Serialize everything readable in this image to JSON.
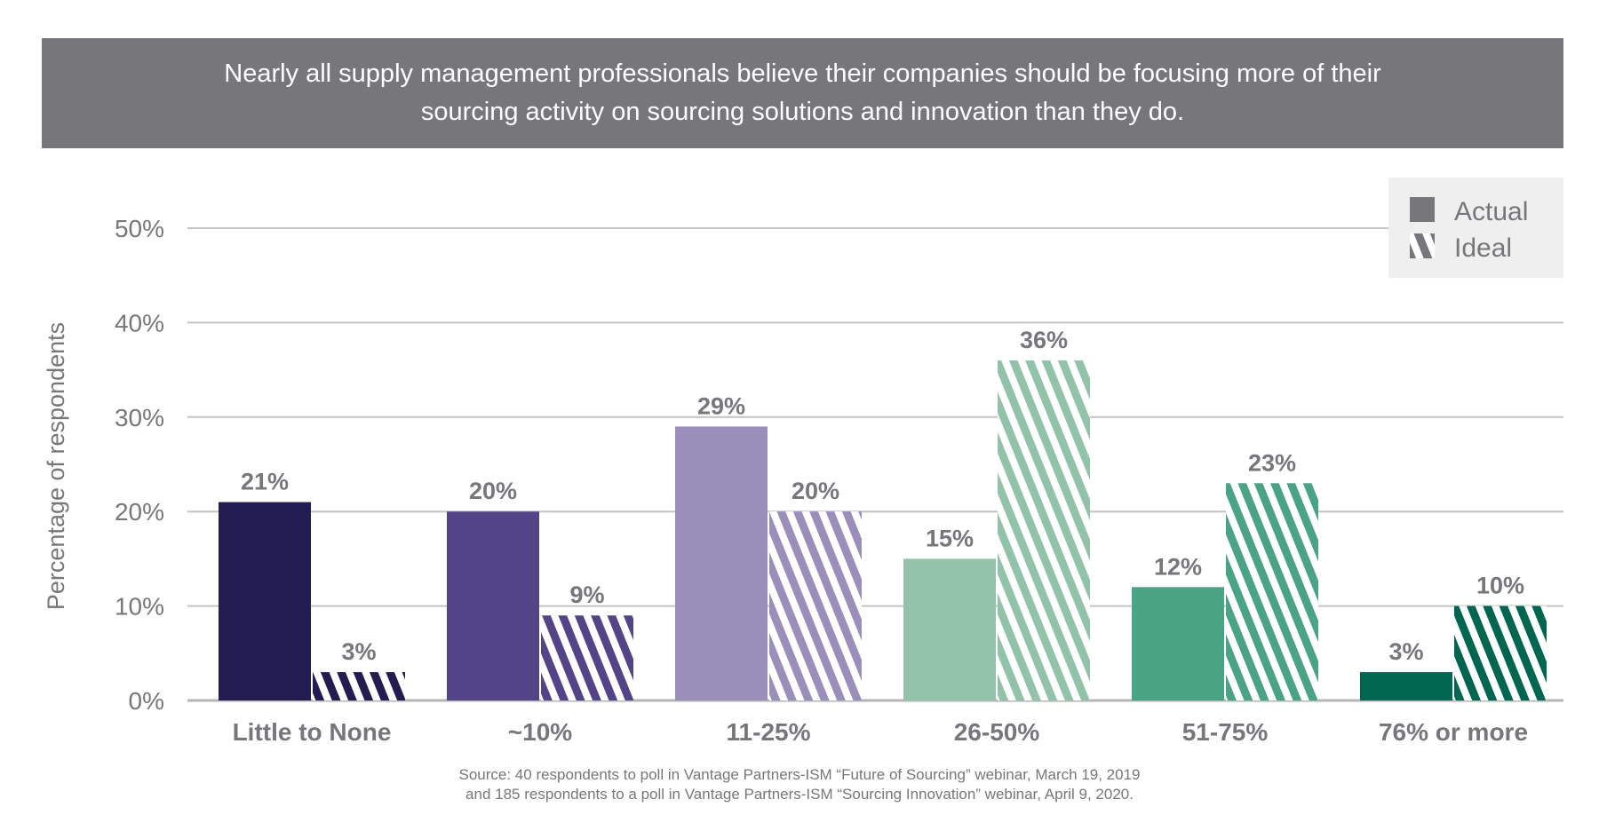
{
  "header": {
    "title": "Nearly all supply management professionals believe their companies should be focusing more of their sourcing activity on sourcing solutions and innovation than they do."
  },
  "chart_data": {
    "type": "bar",
    "title": "Nearly all supply management professionals believe their companies should be focusing more of their sourcing activity on sourcing solutions and innovation than they do.",
    "xlabel": "",
    "ylabel": "Percentage of respondents",
    "ylim": [
      0,
      50
    ],
    "yticks": [
      "0%",
      "10%",
      "20%",
      "30%",
      "40%",
      "50%"
    ],
    "ytick_values": [
      0,
      10,
      20,
      30,
      40,
      50
    ],
    "grid": true,
    "legend_placement": "top-right",
    "categories": [
      "Little to None",
      "~10%",
      "11-25%",
      "26-50%",
      "51-75%",
      "76% or more"
    ],
    "category_colors": [
      "#231c50",
      "#534487",
      "#998fba",
      "#93c2ab",
      "#4aa383",
      "#016650"
    ],
    "series": [
      {
        "name": "Actual",
        "style": "solid",
        "values": [
          21,
          20,
          29,
          15,
          12,
          3
        ],
        "labels": [
          "21%",
          "20%",
          "29%",
          "15%",
          "12%",
          "3%"
        ]
      },
      {
        "name": "Ideal",
        "style": "hatched",
        "values": [
          3,
          9,
          20,
          36,
          23,
          10
        ],
        "labels": [
          "3%",
          "9%",
          "20%",
          "36%",
          "23%",
          "10%"
        ]
      }
    ],
    "legend_swatch_color": "#77777b"
  },
  "source": {
    "line1": "Source: 40 respondents to poll in Vantage Partners-ISM “Future of Sourcing” webinar, March 19, 2019",
    "line2": "and 185 respondents to a poll in Vantage Partners-ISM “Sourcing Innovation” webinar, April 9, 2020."
  }
}
